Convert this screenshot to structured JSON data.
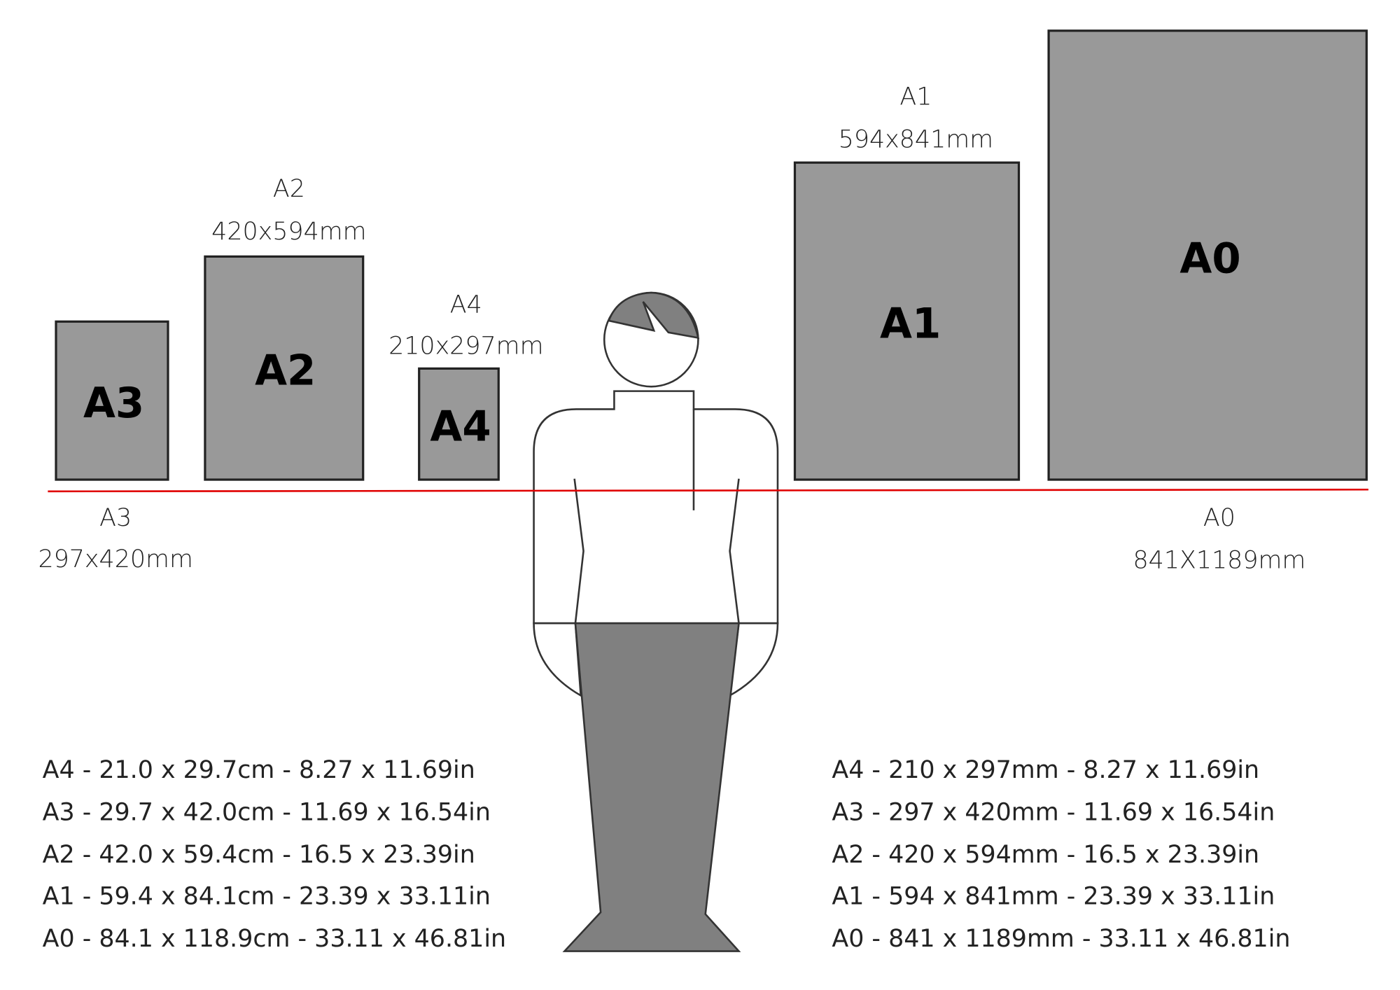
{
  "papers": [
    {
      "id": "A3",
      "label": "A3",
      "name": "A3",
      "size": "297x420mm"
    },
    {
      "id": "A2",
      "label": "A2",
      "name": "A2",
      "size": "420x594mm"
    },
    {
      "id": "A4",
      "label": "A4",
      "name": "A4",
      "size": "210x297mm"
    },
    {
      "id": "A1",
      "label": "A1",
      "name": "A1",
      "size": "594x841mm"
    },
    {
      "id": "A0",
      "label": "A0",
      "name": "A0",
      "size": "841X1189mm"
    }
  ],
  "colors": {
    "paper": "#999999",
    "baseline": "#e00000",
    "skirt": "#808080",
    "outline": "#333333"
  },
  "specs_cm": [
    "A4 - 21.0 x 29.7cm - 8.27 x 11.69in",
    "A3 - 29.7 x 42.0cm - 11.69 x 16.54in",
    "A2 - 42.0 x 59.4cm - 16.5 x 23.39in",
    "A1 - 59.4 x 84.1cm - 23.39 x 33.11in",
    "A0 - 84.1 x 118.9cm - 33.11 x 46.81in"
  ],
  "specs_mm": [
    "A4 - 210 x 297mm - 8.27 x 11.69in",
    "A3 - 297 x 420mm - 11.69 x 16.54in",
    "A2 - 420 x 594mm - 16.5 x 23.39in",
    "A1 - 594 x 841mm - 23.39 x 33.11in",
    "A0 - 841 x 1189mm - 33.11 x 46.81in"
  ]
}
